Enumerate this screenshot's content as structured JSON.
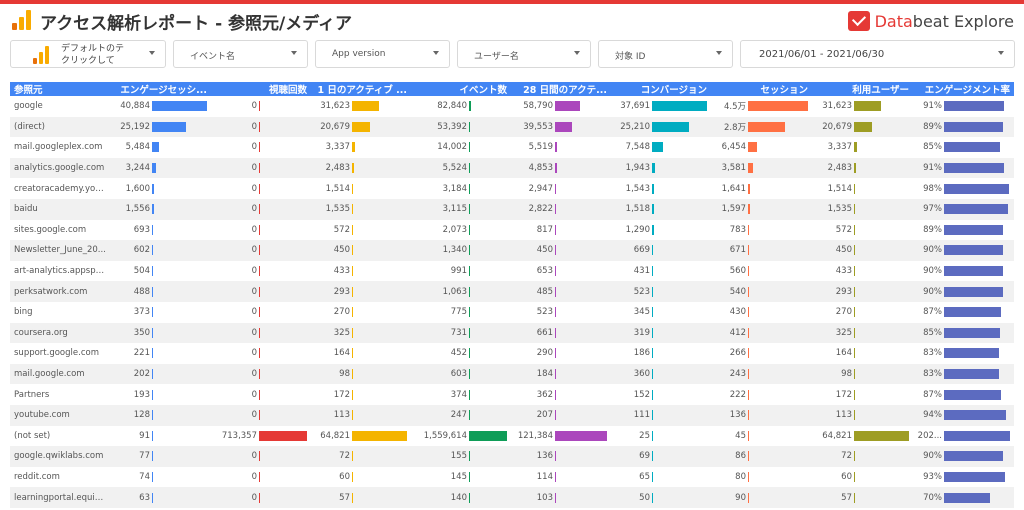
{
  "header": {
    "title": "アクセス解析レポート - 参照元/メディア",
    "brand_name_a": "Data",
    "brand_name_b": "beat Explore"
  },
  "filters": {
    "default_line1": "デフォルトのテ",
    "default_line2": "クリックして",
    "event_name": "イベント名",
    "app_version": "App version",
    "user_name": "ユーザー名",
    "target_id": "対象 ID",
    "date_range": "2021/06/01 - 2021/06/30"
  },
  "colors": {
    "accent": "#e53935",
    "header_blue": "#4285f4",
    "bars": [
      "#4285f4",
      "#e53935",
      "#f4b400",
      "#0f9d58",
      "#ab47bc",
      "#00acc1",
      "#ff7043",
      "#9e9d24",
      "#5c6bc0"
    ]
  },
  "table": {
    "columns": [
      "参照元",
      "エンゲージセッシ...",
      "視聴回数",
      "1 日のアクティブ ...",
      "イベント数",
      "28 日間のアクテ...",
      "コンバージョン",
      "セッション",
      "利用ユーザー",
      "エンゲージメント率"
    ],
    "maxes": [
      40884,
      713357,
      64821,
      1559614,
      121384,
      37691,
      45000,
      64821,
      100
    ],
    "rows": [
      {
        "source": "google",
        "vals": [
          "40,884",
          "0",
          "31,623",
          "82,840",
          "58,790",
          "37,691",
          "4.5万",
          "31,623",
          "91%"
        ],
        "nums": [
          40884,
          0,
          31623,
          82840,
          58790,
          37691,
          45000,
          31623,
          91
        ]
      },
      {
        "source": "(direct)",
        "vals": [
          "25,192",
          "0",
          "20,679",
          "53,392",
          "39,553",
          "25,210",
          "2.8万",
          "20,679",
          "89%"
        ],
        "nums": [
          25192,
          0,
          20679,
          53392,
          39553,
          25210,
          28000,
          20679,
          89
        ]
      },
      {
        "source": "mail.googleplex.com",
        "vals": [
          "5,484",
          "0",
          "3,337",
          "14,002",
          "5,519",
          "7,548",
          "6,454",
          "3,337",
          "85%"
        ],
        "nums": [
          5484,
          0,
          3337,
          14002,
          5519,
          7548,
          6454,
          3337,
          85
        ]
      },
      {
        "source": "analytics.google.com",
        "vals": [
          "3,244",
          "0",
          "2,483",
          "5,524",
          "4,853",
          "1,943",
          "3,581",
          "2,483",
          "91%"
        ],
        "nums": [
          3244,
          0,
          2483,
          5524,
          4853,
          1943,
          3581,
          2483,
          91
        ]
      },
      {
        "source": "creatoracademy.yout...",
        "vals": [
          "1,600",
          "0",
          "1,514",
          "3,184",
          "2,947",
          "1,543",
          "1,641",
          "1,514",
          "98%"
        ],
        "nums": [
          1600,
          0,
          1514,
          3184,
          2947,
          1543,
          1641,
          1514,
          98
        ]
      },
      {
        "source": "baidu",
        "vals": [
          "1,556",
          "0",
          "1,535",
          "3,115",
          "2,822",
          "1,518",
          "1,597",
          "1,535",
          "97%"
        ],
        "nums": [
          1556,
          0,
          1535,
          3115,
          2822,
          1518,
          1597,
          1535,
          97
        ]
      },
      {
        "source": "sites.google.com",
        "vals": [
          "693",
          "0",
          "572",
          "2,073",
          "817",
          "1,290",
          "783",
          "572",
          "89%"
        ],
        "nums": [
          693,
          0,
          572,
          2073,
          817,
          1290,
          783,
          572,
          89
        ]
      },
      {
        "source": "Newsletter_June_20...",
        "vals": [
          "602",
          "0",
          "450",
          "1,340",
          "450",
          "669",
          "671",
          "450",
          "90%"
        ],
        "nums": [
          602,
          0,
          450,
          1340,
          450,
          669,
          671,
          450,
          90
        ]
      },
      {
        "source": "art-analytics.appspot...",
        "vals": [
          "504",
          "0",
          "433",
          "991",
          "653",
          "431",
          "560",
          "433",
          "90%"
        ],
        "nums": [
          504,
          0,
          433,
          991,
          653,
          431,
          560,
          433,
          90
        ]
      },
      {
        "source": "perksatwork.com",
        "vals": [
          "488",
          "0",
          "293",
          "1,063",
          "485",
          "523",
          "540",
          "293",
          "90%"
        ],
        "nums": [
          488,
          0,
          293,
          1063,
          485,
          523,
          540,
          293,
          90
        ]
      },
      {
        "source": "bing",
        "vals": [
          "373",
          "0",
          "270",
          "775",
          "523",
          "345",
          "430",
          "270",
          "87%"
        ],
        "nums": [
          373,
          0,
          270,
          775,
          523,
          345,
          430,
          270,
          87
        ]
      },
      {
        "source": "coursera.org",
        "vals": [
          "350",
          "0",
          "325",
          "731",
          "661",
          "319",
          "412",
          "325",
          "85%"
        ],
        "nums": [
          350,
          0,
          325,
          731,
          661,
          319,
          412,
          325,
          85
        ]
      },
      {
        "source": "support.google.com",
        "vals": [
          "221",
          "0",
          "164",
          "452",
          "290",
          "186",
          "266",
          "164",
          "83%"
        ],
        "nums": [
          221,
          0,
          164,
          452,
          290,
          186,
          266,
          164,
          83
        ]
      },
      {
        "source": "mail.google.com",
        "vals": [
          "202",
          "0",
          "98",
          "603",
          "184",
          "360",
          "243",
          "98",
          "83%"
        ],
        "nums": [
          202,
          0,
          98,
          603,
          184,
          360,
          243,
          98,
          83
        ]
      },
      {
        "source": "Partners",
        "vals": [
          "193",
          "0",
          "172",
          "374",
          "362",
          "152",
          "222",
          "172",
          "87%"
        ],
        "nums": [
          193,
          0,
          172,
          374,
          362,
          152,
          222,
          172,
          87
        ]
      },
      {
        "source": "youtube.com",
        "vals": [
          "128",
          "0",
          "113",
          "247",
          "207",
          "111",
          "136",
          "113",
          "94%"
        ],
        "nums": [
          128,
          0,
          113,
          247,
          207,
          111,
          136,
          113,
          94
        ]
      },
      {
        "source": "(not set)",
        "vals": [
          "91",
          "713,357",
          "64,821",
          "1,559,614",
          "121,384",
          "25",
          "45",
          "64,821",
          "202..."
        ],
        "nums": [
          91,
          713357,
          64821,
          1559614,
          121384,
          25,
          45,
          64821,
          100
        ]
      },
      {
        "source": "google.qwiklabs.com",
        "vals": [
          "77",
          "0",
          "72",
          "155",
          "136",
          "69",
          "86",
          "72",
          "90%"
        ],
        "nums": [
          77,
          0,
          72,
          155,
          136,
          69,
          86,
          72,
          90
        ]
      },
      {
        "source": "reddit.com",
        "vals": [
          "74",
          "0",
          "60",
          "145",
          "114",
          "65",
          "80",
          "60",
          "93%"
        ],
        "nums": [
          74,
          0,
          60,
          145,
          114,
          65,
          80,
          60,
          93
        ]
      },
      {
        "source": "learningportal.equine...",
        "vals": [
          "63",
          "0",
          "57",
          "140",
          "103",
          "50",
          "90",
          "57",
          "70%"
        ],
        "nums": [
          63,
          0,
          57,
          140,
          103,
          50,
          90,
          57,
          70
        ]
      }
    ]
  }
}
